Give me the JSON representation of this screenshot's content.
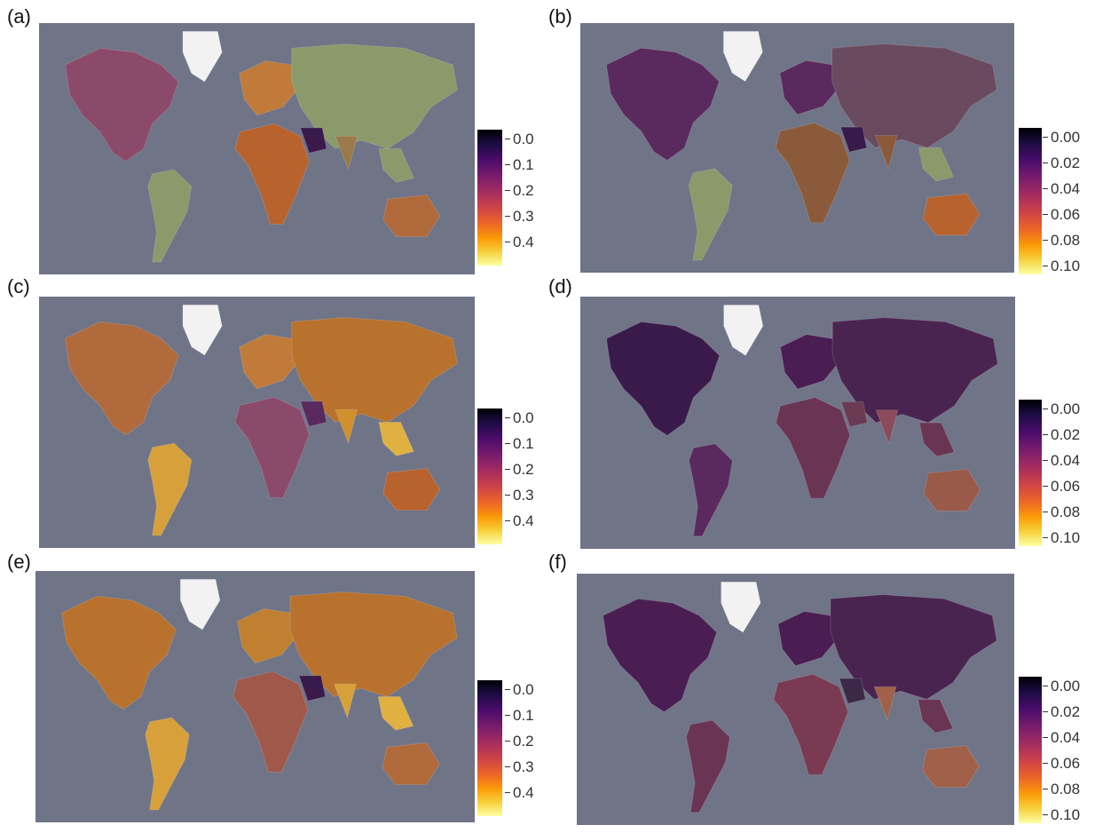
{
  "panels": [
    {
      "label": "(a)",
      "scale": "0.0-0.4",
      "ticks": [
        "0.0",
        "0.1",
        "0.2",
        "0.3",
        "0.4"
      ]
    },
    {
      "label": "(b)",
      "scale": "0.00-0.10",
      "ticks": [
        "0.00",
        "0.02",
        "0.04",
        "0.06",
        "0.08",
        "0.10"
      ]
    },
    {
      "label": "(c)",
      "scale": "0.0-0.4",
      "ticks": [
        "0.0",
        "0.1",
        "0.2",
        "0.3",
        "0.4"
      ]
    },
    {
      "label": "(d)",
      "scale": "0.00-0.10",
      "ticks": [
        "0.00",
        "0.02",
        "0.04",
        "0.06",
        "0.08",
        "0.10"
      ]
    },
    {
      "label": "(e)",
      "scale": "0.0-0.4",
      "ticks": [
        "0.0",
        "0.1",
        "0.2",
        "0.3",
        "0.4"
      ]
    },
    {
      "label": "(f)",
      "scale": "0.00-0.10",
      "ticks": [
        "0.00",
        "0.02",
        "0.04",
        "0.06",
        "0.08",
        "0.10"
      ]
    }
  ],
  "colormap": "inferno-reversed",
  "colors": {
    "ocean": "#6f7487",
    "greenland": "#f2f2f2",
    "nodata_land": "#8a9a6b"
  }
}
